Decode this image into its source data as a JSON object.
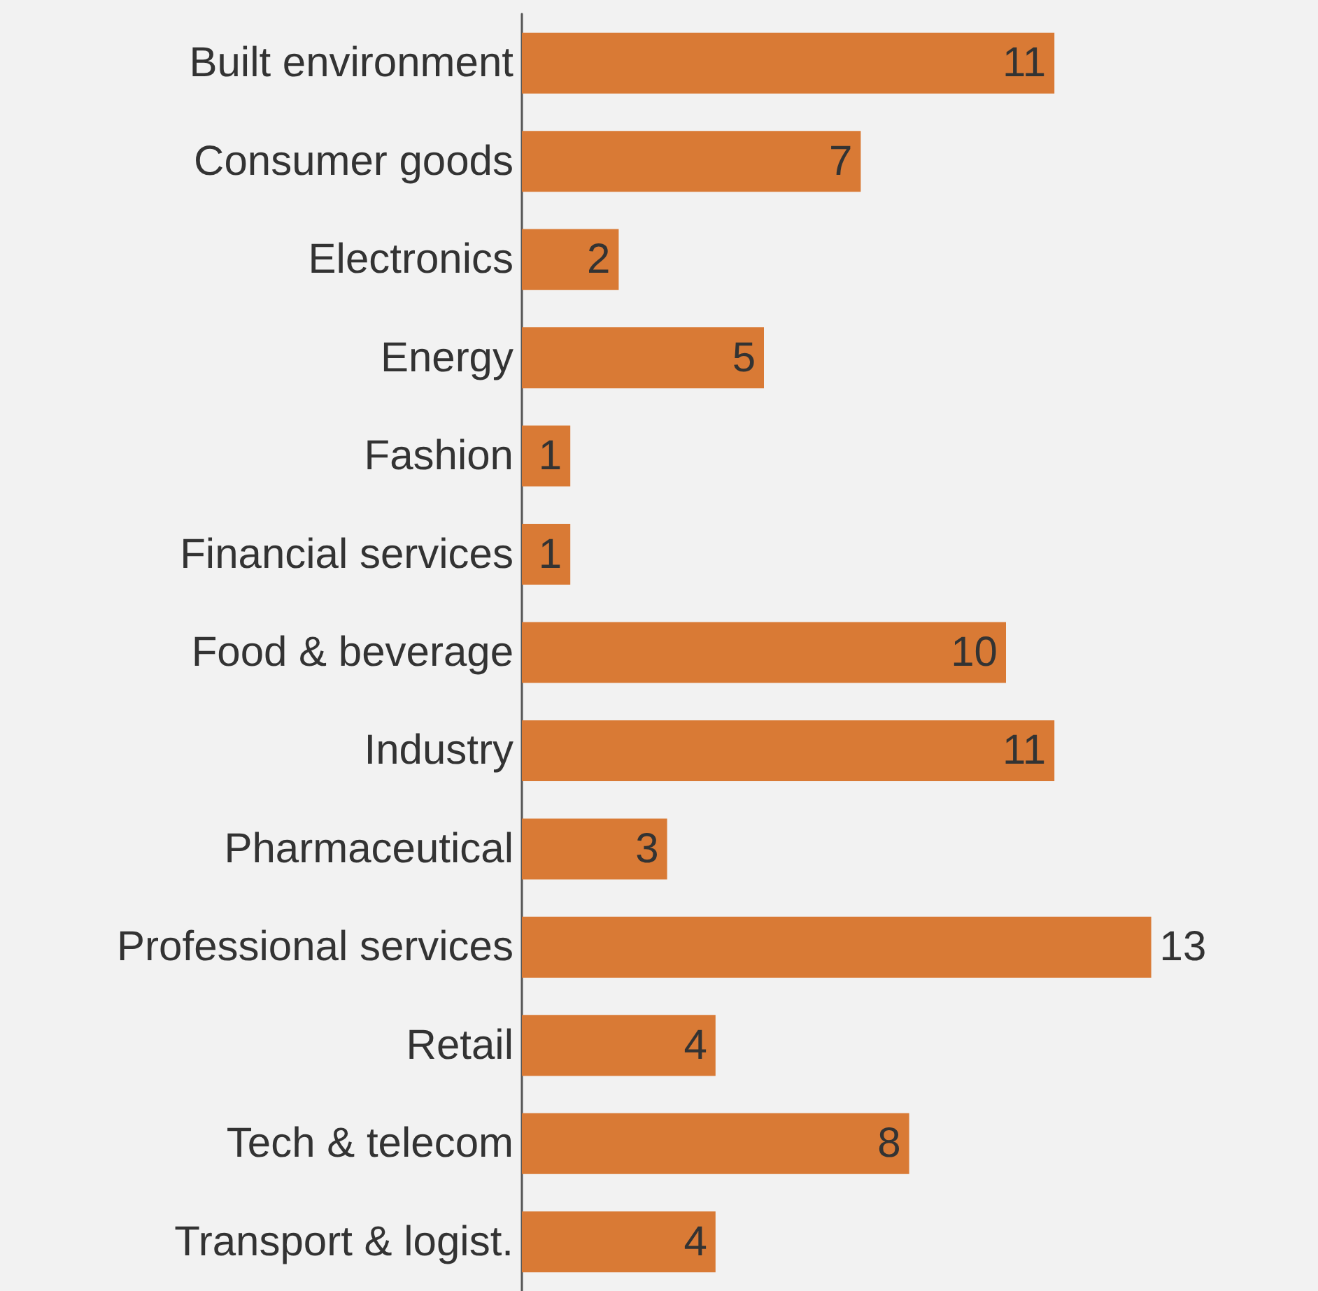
{
  "chart_data": {
    "type": "bar",
    "orientation": "horizontal",
    "categories": [
      "Built environment",
      "Consumer goods",
      "Electronics",
      "Energy",
      "Fashion",
      "Financial services",
      "Food & beverage",
      "Industry",
      "Pharmaceutical",
      "Professional services",
      "Retail",
      "Tech & telecom",
      "Transport & logist."
    ],
    "values": [
      11,
      7,
      2,
      5,
      1,
      1,
      10,
      11,
      3,
      13,
      4,
      8,
      4
    ],
    "color": "#d97a35",
    "data_labels": true
  }
}
